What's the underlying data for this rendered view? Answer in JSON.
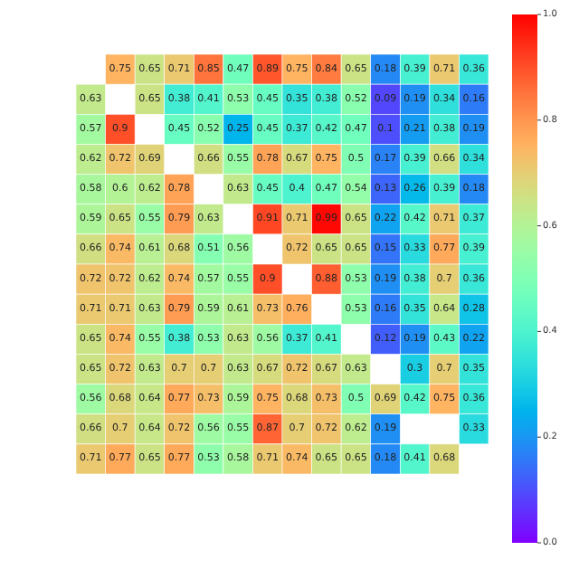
{
  "chart_data": {
    "type": "heatmap",
    "categories": [
      null,
      null,
      null,
      null,
      null,
      null,
      null,
      null,
      null,
      null,
      null,
      null,
      null,
      null
    ],
    "y_categories": [
      null,
      null,
      null,
      null,
      null,
      null,
      null,
      null,
      null,
      null,
      null,
      null,
      null,
      null
    ],
    "data_labels": true,
    "clim": [
      0,
      1
    ],
    "cticks": [
      {
        "value": 0,
        "label": "0.0"
      },
      0.2,
      0.4,
      0.6,
      0.8,
      {
        "value": 1,
        "label": "1.0"
      }
    ],
    "cells": [
      [
        null,
        0.75,
        0.65,
        0.71,
        0.85,
        0.47,
        0.89,
        0.75,
        0.84,
        0.65,
        0.18,
        0.39,
        0.71,
        0.36
      ],
      [
        0.63,
        null,
        0.65,
        0.38,
        0.41,
        0.53,
        0.45,
        0.35,
        0.38,
        0.52,
        0.09,
        0.19,
        0.34,
        0.16
      ],
      [
        0.57,
        0.9,
        null,
        0.45,
        0.52,
        0.25,
        0.45,
        0.37,
        0.42,
        0.47,
        0.1,
        0.21,
        0.38,
        0.19
      ],
      [
        0.62,
        0.72,
        0.69,
        null,
        0.66,
        0.55,
        0.78,
        0.67,
        0.75,
        0.5,
        0.17,
        0.39,
        0.66,
        0.34
      ],
      [
        0.58,
        0.6,
        0.62,
        0.78,
        null,
        0.63,
        0.45,
        0.4,
        0.47,
        0.54,
        0.13,
        0.26,
        0.39,
        0.18
      ],
      [
        0.59,
        0.65,
        0.55,
        0.79,
        0.63,
        null,
        0.91,
        0.71,
        0.99,
        0.65,
        0.22,
        0.42,
        0.71,
        0.37
      ],
      [
        0.66,
        0.74,
        0.61,
        0.68,
        0.51,
        0.56,
        null,
        0.72,
        0.65,
        0.65,
        0.15,
        0.33,
        0.77,
        0.39
      ],
      [
        0.72,
        0.72,
        0.62,
        0.74,
        0.57,
        0.55,
        0.9,
        null,
        0.88,
        0.53,
        0.19,
        0.38,
        0.7,
        0.36
      ],
      [
        0.71,
        0.71,
        0.63,
        0.79,
        0.59,
        0.61,
        0.73,
        0.76,
        null,
        0.53,
        0.16,
        0.35,
        0.64,
        0.28
      ],
      [
        0.65,
        0.74,
        0.55,
        0.38,
        0.53,
        0.63,
        0.56,
        0.37,
        0.41,
        null,
        0.12,
        0.19,
        0.43,
        0.22
      ],
      [
        0.65,
        0.72,
        0.63,
        0.7,
        0.7,
        0.63,
        0.67,
        0.72,
        0.67,
        0.63,
        null,
        0.3,
        0.7,
        0.35
      ],
      [
        0.56,
        0.68,
        0.64,
        0.77,
        0.73,
        0.59,
        0.75,
        0.68,
        0.73,
        0.5,
        0.69,
        0.42,
        0.75,
        0.36
      ],
      [
        0.66,
        0.7,
        0.64,
        0.72,
        0.56,
        0.55,
        0.87,
        0.7,
        0.72,
        0.62,
        0.19,
        null,
        null,
        0.33
      ],
      [
        0.71,
        0.77,
        0.65,
        0.77,
        0.53,
        0.58,
        0.71,
        0.74,
        0.65,
        0.65,
        0.18,
        0.41,
        0.68,
        null
      ]
    ]
  }
}
